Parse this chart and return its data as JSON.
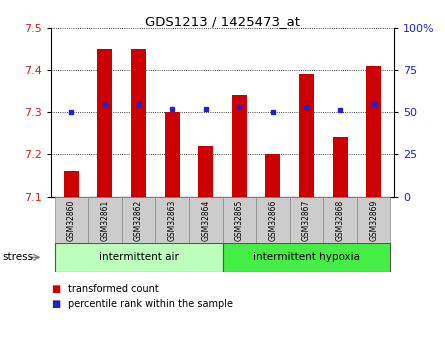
{
  "title": "GDS1213 / 1425473_at",
  "samples": [
    "GSM32860",
    "GSM32861",
    "GSM32862",
    "GSM32863",
    "GSM32864",
    "GSM32865",
    "GSM32866",
    "GSM32867",
    "GSM32868",
    "GSM32869"
  ],
  "transformed_count": [
    7.16,
    7.45,
    7.45,
    7.3,
    7.22,
    7.34,
    7.2,
    7.39,
    7.24,
    7.41
  ],
  "percentile_rank": [
    50,
    55,
    55,
    52,
    52,
    53,
    50,
    53,
    51,
    55
  ],
  "ylim_left": [
    7.1,
    7.5
  ],
  "ylim_right": [
    0,
    100
  ],
  "yticks_left": [
    7.1,
    7.2,
    7.3,
    7.4,
    7.5
  ],
  "yticks_right": [
    0,
    25,
    50,
    75,
    100
  ],
  "bar_color": "#cc0000",
  "dot_color": "#2222cc",
  "bar_bottom": 7.1,
  "group1_label": "intermittent air",
  "group2_label": "intermittent hypoxia",
  "group1_color": "#bbffbb",
  "group2_color": "#44ee44",
  "stress_label": "stress",
  "legend_bar_label": "transformed count",
  "legend_dot_label": "percentile rank within the sample",
  "tick_label_color_left": "#cc2222",
  "tick_label_color_right": "#2222cc",
  "bg_color": "#ffffff",
  "xlabel_bg": "#cccccc",
  "bar_width": 0.45
}
